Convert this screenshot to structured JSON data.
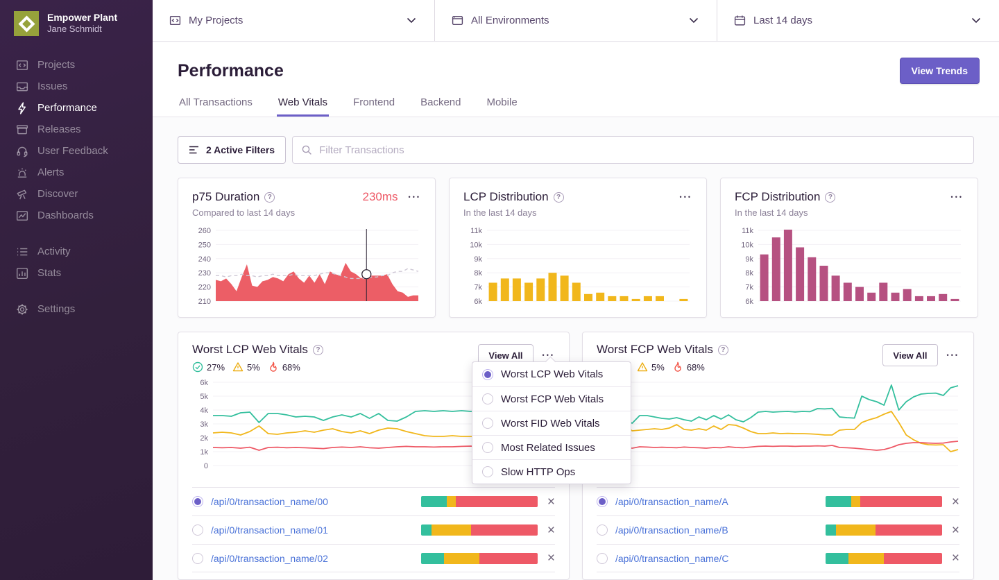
{
  "colors": {
    "accent": "#6C5FC7",
    "good": "#33bf9d",
    "meh": "#f1b71c",
    "poor": "#ee5966",
    "link": "#4a72d8"
  },
  "icons": {
    "question": "?",
    "check": "✓",
    "close": "×",
    "ellipsis": "•••"
  },
  "sidebar": {
    "org_name": "Empower Plant",
    "user_name": "Jane Schmidt",
    "items": [
      {
        "label": "Projects"
      },
      {
        "label": "Issues"
      },
      {
        "label": "Performance",
        "active": true
      },
      {
        "label": "Releases"
      },
      {
        "label": "User Feedback"
      },
      {
        "label": "Alerts"
      },
      {
        "label": "Discover"
      },
      {
        "label": "Dashboards"
      }
    ],
    "secondary_items": [
      {
        "label": "Activity"
      },
      {
        "label": "Stats"
      }
    ],
    "settings_label": "Settings"
  },
  "topbar": {
    "project_filter": "My Projects",
    "environment_filter": "All Environments",
    "date_filter": "Last 14 days"
  },
  "header": {
    "title": "Performance",
    "view_trends_label": "View Trends"
  },
  "tabs": [
    {
      "label": "All Transactions",
      "active": false
    },
    {
      "label": "Web Vitals",
      "active": true
    },
    {
      "label": "Frontend",
      "active": false
    },
    {
      "label": "Backend",
      "active": false
    },
    {
      "label": "Mobile",
      "active": false
    }
  ],
  "filter_bar": {
    "active_filters_label": "2 Active Filters",
    "search_placeholder": "Filter Transactions"
  },
  "worst_lcp_card": {
    "title": "Worst LCP Web Vitals",
    "vitals_summary": {
      "good_pct": "27%",
      "meh_pct": "5%",
      "poor_pct": "68%"
    },
    "view_all_label": "View All",
    "rows": [
      {
        "label": "/api/0/transaction_name/00",
        "selected": true,
        "bar_pct": [
          22,
          8,
          70
        ]
      },
      {
        "label": "/api/0/transaction_name/01",
        "selected": false,
        "bar_pct": [
          9,
          34,
          57
        ]
      },
      {
        "label": "/api/0/transaction_name/02",
        "selected": false,
        "bar_pct": [
          20,
          30,
          50
        ]
      }
    ]
  },
  "worst_fcp_card": {
    "title": "Worst FCP Web Vitals",
    "vitals_summary": {
      "good_pct": "27%",
      "meh_pct": "5%",
      "poor_pct": "68%"
    },
    "view_all_label": "View All",
    "rows": [
      {
        "label": "/api/0/transaction_name/A",
        "selected": true,
        "bar_pct": [
          22,
          8,
          70
        ]
      },
      {
        "label": "/api/0/transaction_name/B",
        "selected": false,
        "bar_pct": [
          9,
          34,
          57
        ]
      },
      {
        "label": "/api/0/transaction_name/C",
        "selected": false,
        "bar_pct": [
          20,
          30,
          50
        ]
      }
    ]
  },
  "dropdown_menu": {
    "items": [
      {
        "label": "Worst LCP Web Vitals",
        "selected": true
      },
      {
        "label": "Worst FCP Web Vitals",
        "selected": false
      },
      {
        "label": "Worst FID Web Vitals",
        "selected": false
      },
      {
        "label": "Most Related Issues",
        "selected": false
      },
      {
        "label": "Slow HTTP Ops",
        "selected": false
      }
    ]
  },
  "chart_data": {
    "p75_duration": {
      "type": "area",
      "title": "p75 Duration",
      "subtitle": "Compared to last 14 days",
      "current_value": "230ms",
      "ylim": [
        210,
        260
      ],
      "yticks": [
        "260",
        "250",
        "240",
        "230",
        "220",
        "210"
      ],
      "series": [
        {
          "name": "p75 duration",
          "color": "#ec5e66",
          "dashed": false,
          "values": [
            225,
            224,
            226,
            222,
            217,
            227,
            236,
            221,
            220,
            224,
            225,
            227,
            226,
            224,
            229,
            231,
            226,
            223,
            228,
            223,
            229,
            222,
            231,
            229,
            228,
            237,
            231,
            229,
            226,
            229,
            228,
            228,
            228,
            229,
            222,
            217,
            216,
            213,
            214,
            214
          ]
        },
        {
          "name": "previous period",
          "color": "#cfc9d6",
          "dashed": true,
          "values": [
            228,
            228,
            227,
            228,
            228,
            229,
            228,
            228,
            227,
            228,
            228,
            229,
            228,
            228,
            228,
            229,
            228,
            228,
            228,
            228,
            229,
            230,
            230,
            229,
            228,
            227,
            226,
            226,
            226,
            226,
            227,
            227,
            228,
            228,
            230,
            231,
            231,
            233,
            232,
            231
          ]
        }
      ],
      "cursor": {
        "x_fraction": 0.744,
        "value": 229
      }
    },
    "lcp_distribution": {
      "type": "bar",
      "title": "LCP Distribution",
      "subtitle": "In the last 14 days",
      "color": "#f1b71c",
      "ylim": [
        6000,
        11000
      ],
      "yticks": [
        "11k",
        "10k",
        "9k",
        "8k",
        "7k",
        "6k"
      ],
      "values": [
        7300,
        7600,
        7600,
        7300,
        7600,
        8000,
        7800,
        7300,
        6500,
        6600,
        6350,
        6350,
        6150,
        6350,
        6350,
        null,
        6150
      ]
    },
    "fcp_distribution": {
      "type": "bar",
      "title": "FCP Distribution",
      "subtitle": "In the last 14 days",
      "color": "#b65181",
      "ylim": [
        6000,
        11000
      ],
      "yticks": [
        "11k",
        "10k",
        "9k",
        "8k",
        "7k",
        "6k"
      ],
      "values": [
        9300,
        10500,
        11050,
        9800,
        9100,
        8500,
        7800,
        7300,
        7000,
        6600,
        7300,
        6600,
        6850,
        6350,
        6350,
        6500,
        6150
      ]
    },
    "worst_lcp_trend": {
      "type": "line",
      "ylim": [
        0,
        6000
      ],
      "yticks": [
        "6k",
        "5k",
        "4k",
        "3k",
        "2k",
        "1k",
        "0"
      ],
      "series": [
        {
          "name": "good",
          "color": "#33bf9d",
          "values": [
            3600,
            3600,
            3550,
            3800,
            3850,
            3100,
            3750,
            3750,
            3650,
            3500,
            3550,
            3500,
            3250,
            3500,
            3650,
            3500,
            3750,
            3400,
            3750,
            3250,
            3200,
            3500,
            3900,
            3950,
            3900,
            3950,
            3900,
            3950,
            3900,
            3950,
            4100,
            4100,
            4150,
            3450,
            3400,
            5200,
            4950,
            4650
          ]
        },
        {
          "name": "meh",
          "color": "#f1b71c",
          "values": [
            2350,
            2400,
            2350,
            2200,
            2450,
            2850,
            2300,
            2250,
            2350,
            2400,
            2500,
            2400,
            2550,
            2650,
            2450,
            2350,
            2500,
            2300,
            2550,
            2700,
            2650,
            2450,
            2300,
            2150,
            2100,
            2100,
            2150,
            2100,
            2100,
            2100,
            2050,
            1950,
            1950,
            2400,
            2450,
            2900,
            3200,
            3450
          ]
        },
        {
          "name": "poor",
          "color": "#ee5966",
          "values": [
            1300,
            1280,
            1300,
            1250,
            1320,
            1100,
            1300,
            1320,
            1280,
            1300,
            1280,
            1250,
            1220,
            1300,
            1330,
            1300,
            1350,
            1280,
            1250,
            1300,
            1350,
            1380,
            1350,
            1350,
            1330,
            1350,
            1350,
            1380,
            1400,
            1350,
            1450,
            1400,
            1200,
            1050,
            1000,
            950,
            920,
            900
          ]
        }
      ]
    },
    "worst_fcp_trend": {
      "type": "line",
      "ylim": [
        0,
        6000
      ],
      "yticks": [
        "6k",
        "5k",
        "4k",
        "3k",
        "2k",
        "1k",
        "0"
      ],
      "series": [
        {
          "name": "good",
          "color": "#33bf9d",
          "values": [
            3700,
            3300,
            3050,
            3600,
            3600,
            3500,
            3400,
            3350,
            3450,
            3300,
            3200,
            3500,
            3300,
            3600,
            3350,
            3650,
            3300,
            3150,
            3450,
            3850,
            3900,
            3850,
            3880,
            3900,
            3860,
            3900,
            3880,
            4100,
            4080,
            4120,
            3500,
            3450,
            3420,
            5000,
            4750,
            4600,
            4350,
            5800,
            4000,
            4600,
            4950,
            5150,
            5200,
            5220,
            5050,
            5600,
            5750
          ]
        },
        {
          "name": "meh",
          "color": "#f1b71c",
          "values": [
            2600,
            2900,
            2500,
            2550,
            2600,
            2650,
            2600,
            2700,
            2950,
            2600,
            2550,
            2650,
            2550,
            2850,
            2600,
            2950,
            2900,
            2700,
            2450,
            2300,
            2300,
            2350,
            2300,
            2320,
            2300,
            2300,
            2280,
            2250,
            2200,
            2200,
            2550,
            2600,
            2600,
            3100,
            3300,
            3450,
            3700,
            3900,
            3100,
            2200,
            1850,
            1600,
            1500,
            1480,
            1500,
            1000,
            1150
          ]
        },
        {
          "name": "poor",
          "color": "#ee5966",
          "values": [
            1350,
            1300,
            1250,
            1350,
            1330,
            1300,
            1320,
            1300,
            1280,
            1330,
            1300,
            1280,
            1250,
            1300,
            1280,
            1350,
            1300,
            1280,
            1330,
            1380,
            1400,
            1380,
            1400,
            1400,
            1380,
            1400,
            1400,
            1420,
            1400,
            1450,
            1300,
            1280,
            1250,
            1200,
            1150,
            1100,
            1150,
            1300,
            1500,
            1600,
            1650,
            1650,
            1620,
            1600,
            1620,
            1700,
            1750
          ]
        }
      ]
    }
  }
}
